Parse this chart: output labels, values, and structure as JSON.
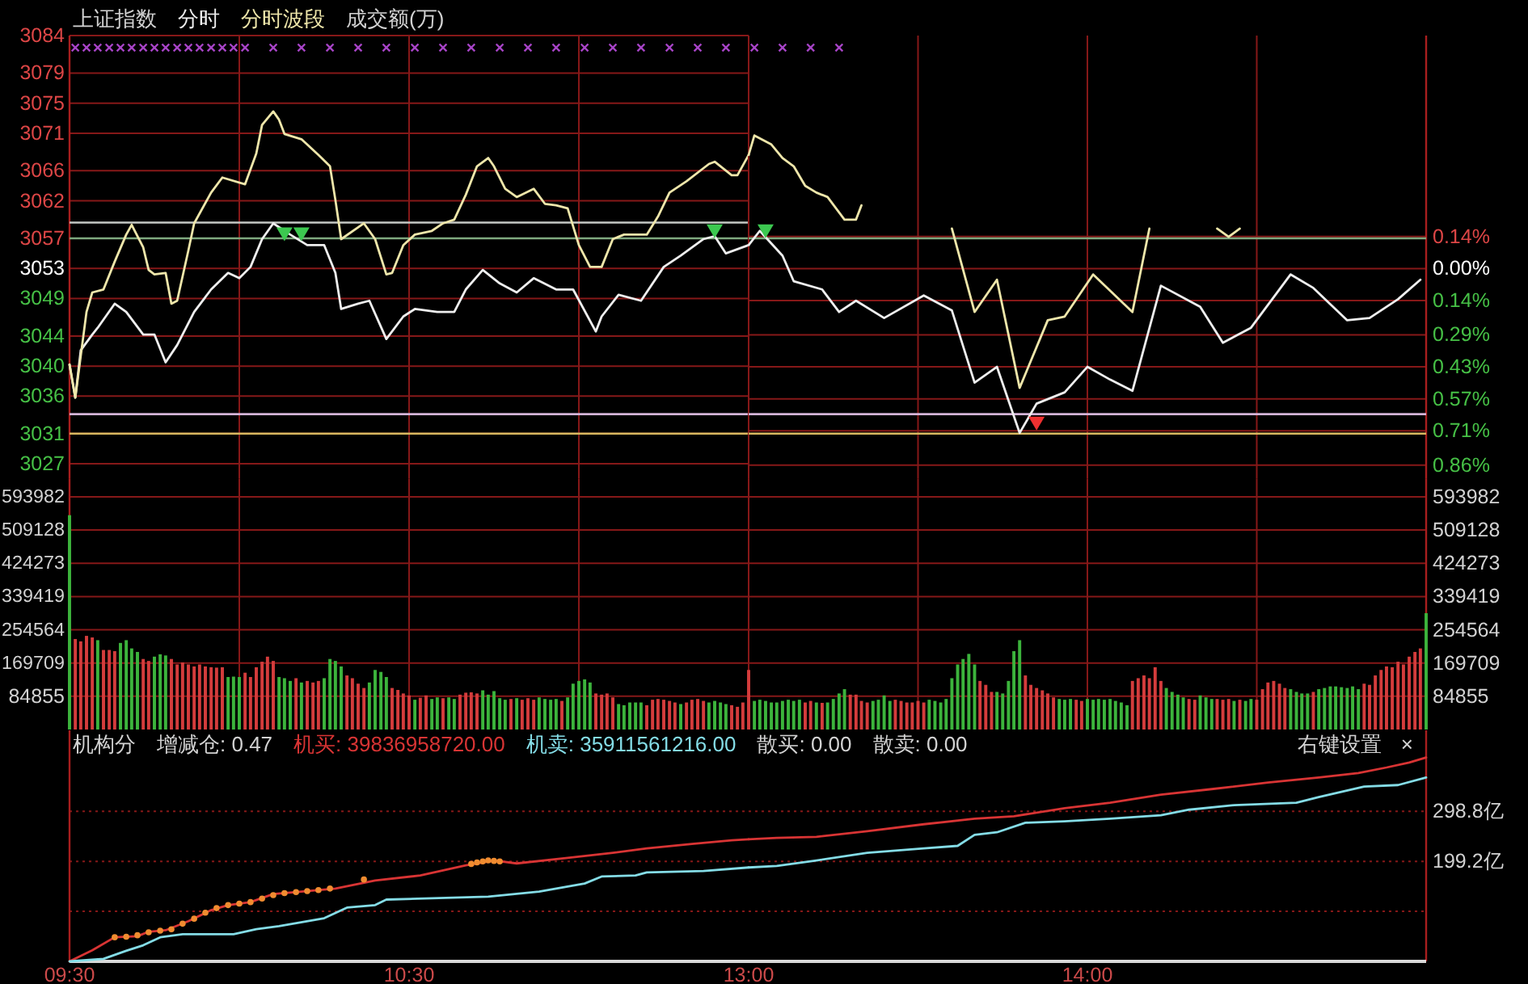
{
  "chart_data": [
    {
      "type": "line",
      "title": "上证指数",
      "series": [
        {
          "name": "分时",
          "color": "#eeeeee",
          "x": [
            9.5,
            9.517,
            9.533,
            9.567,
            9.583,
            9.633,
            9.667,
            9.717,
            9.75,
            9.783,
            9.817,
            9.867,
            9.917,
            9.967,
            10,
            10.033,
            10.067,
            10.1,
            10.15,
            10.2,
            10.25,
            10.283,
            10.3,
            10.35,
            10.383,
            10.433,
            10.483,
            10.517,
            10.583,
            10.633,
            10.667,
            10.717,
            10.767,
            10.817,
            10.867,
            10.933,
            10.983,
            11.05,
            11.067,
            11.117,
            11.183,
            11.25,
            11.3,
            11.367,
            11.4,
            11.433,
            11.5
          ],
          "values": [
            3040.2,
            3035.8,
            3042.1,
            3044.2,
            3045.1,
            3048.3,
            3047.2,
            3044.2,
            3044.2,
            3040.5,
            3042.8,
            3047.2,
            3050.2,
            3052.4,
            3051.7,
            3053.2,
            3056.9,
            3059.0,
            3057.5,
            3056.1,
            3056.1,
            3052.4,
            3047.6,
            3048.3,
            3048.7,
            3043.6,
            3046.6,
            3047.6,
            3047.2,
            3047.2,
            3050.2,
            3052.8,
            3051.0,
            3049.8,
            3051.7,
            3050.2,
            3050.2,
            3044.6,
            3046.6,
            3049.5,
            3048.7,
            3053.2,
            3054.7,
            3056.9,
            3057.3,
            3055.0,
            3056.1
          ]
        },
        {
          "name": "分时波段",
          "color": "#eee6aa",
          "x": [
            9.5,
            9.517,
            9.55,
            9.567,
            9.6,
            9.633,
            9.667,
            9.683,
            9.717,
            9.733,
            9.75,
            9.783,
            9.8,
            9.817,
            9.85,
            9.867,
            9.917,
            9.95,
            10.017,
            10.05,
            10.067,
            10.1,
            10.117,
            10.133,
            10.183,
            10.233,
            10.267,
            10.283,
            10.3,
            10.367,
            10.4,
            10.433,
            10.45,
            10.483,
            10.517,
            10.567,
            10.6,
            10.633,
            10.667,
            10.7,
            10.733,
            10.75,
            10.783,
            10.817,
            10.867,
            10.9,
            10.933,
            10.967,
            11,
            11.033,
            11.067,
            11.1,
            11.133,
            11.2,
            11.233,
            11.267,
            11.317,
            11.383,
            11.4,
            11.45,
            11.467,
            11.5
          ],
          "values": [
            3040.2,
            3035.8,
            3047.2,
            3049.8,
            3050.2,
            3053.9,
            3057.5,
            3058.8,
            3055.8,
            3052.8,
            3052.2,
            3052.4,
            3048.3,
            3048.7,
            3055.4,
            3059.0,
            3063.1,
            3065.1,
            3064.2,
            3068.3,
            3072.1,
            3073.9,
            3072.8,
            3070.9,
            3070.2,
            3068.1,
            3066.6,
            3062.1,
            3056.9,
            3059.0,
            3056.9,
            3052.2,
            3052.4,
            3056.1,
            3057.5,
            3058.0,
            3059.0,
            3059.5,
            3062.8,
            3066.6,
            3067.7,
            3066.6,
            3063.6,
            3062.5,
            3063.6,
            3061.6,
            3061.4,
            3061.0,
            3056.1,
            3053.2,
            3053.2,
            3056.9,
            3057.5,
            3057.5,
            3059.9,
            3063.1,
            3064.6,
            3066.9,
            3067.2,
            3065.4,
            3065.4,
            3068.1
          ]
        },
        {
          "type": "scatter",
          "marker": "cross",
          "color": "#a844c8",
          "x": [
            9.517,
            9.55,
            9.583,
            9.617,
            9.65,
            9.683,
            9.717,
            9.75,
            9.783,
            9.817,
            9.85,
            9.883,
            9.917,
            9.95,
            9.983,
            10.017,
            10.1,
            10.183,
            10.267,
            10.35,
            10.433,
            10.517,
            10.6,
            10.683,
            10.767,
            10.85,
            10.933,
            11.017,
            11.1,
            11.183,
            11.267,
            11.35,
            11.433
          ],
          "values": [
            3082.4,
            3082.4,
            3082.4,
            3082.4,
            3082.4,
            3082.4,
            3082.4,
            3082.4,
            3082.4,
            3082.4,
            3082.4,
            3082.4,
            3082.4,
            3082.4,
            3082.4,
            3082.4,
            3082.4,
            3082.4,
            3082.4,
            3082.4,
            3082.4,
            3082.4,
            3082.4,
            3082.4,
            3082.4,
            3082.4,
            3082.4,
            3082.4,
            3082.4,
            3082.4,
            3082.4,
            3082.4,
            3082.4
          ]
        },
        {
          "type": "scatter",
          "marker": "triangle",
          "color": "#3cc850",
          "x": [
            10.133,
            10.183,
            11.4
          ],
          "values": [
            3057.6,
            3057.6,
            3058.0
          ]
        }
      ],
      "annotations": [
        "成交额(万)"
      ],
      "xlim": [
        9.5,
        11.5
      ],
      "xticks": [
        9.5,
        10,
        10.5,
        11,
        11.5
      ],
      "ylim": [
        3025,
        3084
      ],
      "yticks": [
        3027,
        3031,
        3036,
        3040,
        3044,
        3049,
        3053,
        3057,
        3062,
        3066,
        3071,
        3075,
        3079,
        3084
      ],
      "ref_lines": [
        {
          "axis": "y",
          "value": 3059.1,
          "color": "#c4c8c4"
        },
        {
          "axis": "y",
          "value": 3057.0,
          "color": "#7ea87e"
        },
        {
          "axis": "y",
          "value": 3033.6,
          "color": "#d4b4d8"
        },
        {
          "axis": "y",
          "value": 3031.0,
          "color": "#d8b860"
        }
      ],
      "grid": true,
      "tick_labels": "y"
    },
    {
      "type": "line",
      "series": [
        {
          "color": "#eeeeee",
          "x": [
            13,
            13.033,
            13.1,
            13.133,
            13.217,
            13.267,
            13.317,
            13.4,
            13.517,
            13.6,
            13.667,
            13.733,
            13.8,
            13.85,
            13.933,
            14,
            14.067,
            14.133,
            14.217,
            14.333,
            14.4,
            14.483,
            14.6,
            14.667,
            14.767,
            14.833,
            14.917,
            14.983
          ],
          "values": [
            3056.1,
            3058.0,
            3054.7,
            3051.3,
            3050.2,
            3047.2,
            3048.7,
            3046.4,
            3049.4,
            3047.4,
            3037.8,
            3039.9,
            3031.1,
            3035.0,
            3036.5,
            3039.9,
            3038.2,
            3036.7,
            3050.7,
            3047.9,
            3043.1,
            3045.1,
            3052.2,
            3050.4,
            3046.1,
            3046.4,
            3048.9,
            3051.5
          ]
        },
        {
          "color": "#eee6aa",
          "x": [
            13,
            13.017,
            13.067,
            13.1,
            13.133,
            13.167,
            13.2,
            13.233,
            13.283,
            13.317,
            13.333
          ],
          "values": [
            3068.1,
            3070.7,
            3069.5,
            3067.7,
            3066.6,
            3064.0,
            3063.1,
            3062.5,
            3059.5,
            3059.5,
            3061.4
          ]
        },
        {
          "color": "#eee6aa",
          "x": [
            13.6,
            13.667,
            13.733,
            13.8,
            13.883,
            13.933,
            14.017,
            14.133,
            14.183
          ],
          "values": [
            3058.3,
            3047.2,
            3051.5,
            3037.1,
            3046.1,
            3046.6,
            3052.2,
            3047.2,
            3058.3
          ]
        },
        {
          "color": "#eee6aa",
          "x": [
            14.383,
            14.417,
            14.45
          ],
          "values": [
            3058.3,
            3057.2,
            3058.3
          ]
        },
        {
          "type": "scatter",
          "marker": "cross",
          "color": "#a844c8",
          "x": [
            13.017,
            13.1,
            13.183,
            13.267
          ],
          "values": [
            3082.4,
            3082.4,
            3082.4,
            3082.4
          ]
        },
        {
          "type": "scatter",
          "marker": "triangle",
          "color": "#3cc850",
          "x": [
            13.05
          ],
          "values": [
            3058.0
          ]
        },
        {
          "type": "scatter",
          "marker": "triangle",
          "color": "#ee3030",
          "x": [
            13.85
          ],
          "values": [
            3032.4
          ]
        }
      ],
      "xlim": [
        13,
        15
      ],
      "xticks": [
        13,
        13.5,
        14,
        14.5,
        15
      ],
      "ylim": [
        3025,
        3084
      ],
      "y2lim": [
        -0.92,
        1.02
      ],
      "y2ticks": [
        {
          "value": 0.14,
          "label": "0.14%"
        },
        {
          "value": 0,
          "label": "0.00%"
        },
        {
          "value": -0.14,
          "label": "0.14%"
        },
        {
          "value": -0.29,
          "label": "0.29%"
        },
        {
          "value": -0.43,
          "label": "0.43%"
        },
        {
          "value": -0.57,
          "label": "0.57%"
        },
        {
          "value": -0.71,
          "label": "0.71%"
        },
        {
          "value": -0.86,
          "label": "0.86%"
        }
      ],
      "ref_lines": [
        {
          "axis": "y",
          "value": 3057.0,
          "color": "#7ea87e"
        },
        {
          "axis": "y",
          "value": 3033.6,
          "color": "#d4b4d8"
        },
        {
          "axis": "y",
          "value": 3031.0,
          "color": "#d8b860"
        }
      ],
      "grid": true,
      "tick_labels": "y"
    },
    {
      "type": "bar",
      "x": [
        9.5,
        9.517,
        9.533,
        9.55,
        9.567,
        9.583,
        9.6,
        9.617,
        9.633,
        9.65,
        9.667,
        9.683,
        9.7,
        9.717,
        9.733,
        9.75,
        9.767,
        9.783,
        9.8,
        9.817,
        9.833,
        9.85,
        9.867,
        9.883,
        9.9,
        9.917,
        9.933,
        9.95,
        9.967,
        9.983,
        10,
        10.017,
        10.033,
        10.05,
        10.067,
        10.083,
        10.1,
        10.117,
        10.133,
        10.15,
        10.167,
        10.183,
        10.2,
        10.217,
        10.233,
        10.25,
        10.267,
        10.283,
        10.3,
        10.317,
        10.333,
        10.35,
        10.367,
        10.383,
        10.4,
        10.417,
        10.433,
        10.45,
        10.467,
        10.483,
        10.5,
        10.517,
        10.533,
        10.55,
        10.567,
        10.583,
        10.6,
        10.617,
        10.633,
        10.65,
        10.667,
        10.683,
        10.7,
        10.717,
        10.733,
        10.75,
        10.767,
        10.783,
        10.8,
        10.817,
        10.833,
        10.85,
        10.867,
        10.883,
        10.9,
        10.917,
        10.933,
        10.95,
        10.967,
        10.983,
        11,
        11.017,
        11.033,
        11.05,
        11.067,
        11.083,
        11.1,
        11.117,
        11.133,
        11.15,
        11.167,
        11.183,
        11.2,
        11.217,
        11.233,
        11.25,
        11.267,
        11.283,
        11.3,
        11.317,
        11.333,
        11.35,
        11.367,
        11.383,
        11.4,
        11.417,
        11.433,
        11.45,
        11.467,
        11.483
      ],
      "values": [
        547000,
        231000,
        225000,
        239000,
        235000,
        228000,
        203000,
        203000,
        200000,
        221000,
        228000,
        207000,
        198000,
        180000,
        175000,
        186000,
        192000,
        189000,
        180000,
        166000,
        171000,
        166000,
        161000,
        166000,
        161000,
        159000,
        158000,
        159000,
        134000,
        135000,
        134000,
        145000,
        134000,
        159000,
        173000,
        186000,
        175000,
        134000,
        131000,
        124000,
        131000,
        120000,
        124000,
        120000,
        124000,
        131000,
        180000,
        175000,
        161000,
        138000,
        131000,
        117000,
        106000,
        120000,
        152000,
        147000,
        134000,
        106000,
        101000,
        92000,
        87000,
        76000,
        81000,
        87000,
        78000,
        82000,
        80000,
        82000,
        78000,
        89000,
        94000,
        95000,
        92000,
        100000,
        89000,
        98000,
        80000,
        76000,
        78000,
        80000,
        76000,
        80000,
        76000,
        82000,
        78000,
        76000,
        78000,
        73000,
        82000,
        117000,
        124000,
        128000,
        120000,
        92000,
        89000,
        92000,
        82000,
        65000,
        62000,
        69000,
        69000,
        69000,
        62000,
        76000,
        78000,
        76000,
        73000,
        69000,
        65000,
        69000,
        76000,
        78000,
        73000,
        69000,
        73000,
        69000,
        65000,
        62000,
        58000,
        69000
      ],
      "colors": [
        "#3cb43c",
        "#d43c3c",
        "#d43c3c",
        "#d43c3c",
        "#d43c3c",
        "#3cb43c",
        "#d43c3c",
        "#d43c3c",
        "#d43c3c",
        "#3cb43c",
        "#3cb43c",
        "#3cb43c",
        "#3cb43c",
        "#d43c3c",
        "#d43c3c",
        "#3cb43c",
        "#3cb43c",
        "#3cb43c",
        "#d43c3c",
        "#d43c3c",
        "#d43c3c",
        "#d43c3c",
        "#d43c3c",
        "#d43c3c",
        "#d43c3c",
        "#d43c3c",
        "#d43c3c",
        "#d43c3c",
        "#3cb43c",
        "#3cb43c",
        "#3cb43c",
        "#d43c3c",
        "#d43c3c",
        "#d43c3c",
        "#d43c3c",
        "#d43c3c",
        "#d43c3c",
        "#3cb43c",
        "#3cb43c",
        "#3cb43c",
        "#d43c3c",
        "#3cb43c",
        "#d43c3c",
        "#d43c3c",
        "#d43c3c",
        "#3cb43c",
        "#3cb43c",
        "#3cb43c",
        "#3cb43c",
        "#d43c3c",
        "#d43c3c",
        "#d43c3c",
        "#d43c3c",
        "#3cb43c",
        "#3cb43c",
        "#3cb43c",
        "#3cb43c",
        "#d43c3c",
        "#d43c3c",
        "#d43c3c",
        "#d43c3c",
        "#3cb43c",
        "#d43c3c",
        "#d43c3c",
        "#3cb43c",
        "#3cb43c",
        "#d43c3c",
        "#3cb43c",
        "#3cb43c",
        "#d43c3c",
        "#d43c3c",
        "#d43c3c",
        "#d43c3c",
        "#3cb43c",
        "#3cb43c",
        "#3cb43c",
        "#3cb43c",
        "#3cb43c",
        "#d43c3c",
        "#3cb43c",
        "#d43c3c",
        "#d43c3c",
        "#d43c3c",
        "#3cb43c",
        "#3cb43c",
        "#3cb43c",
        "#3cb43c",
        "#d43c3c",
        "#3cb43c",
        "#3cb43c",
        "#3cb43c",
        "#3cb43c",
        "#3cb43c",
        "#d43c3c",
        "#d43c3c",
        "#d43c3c",
        "#d43c3c",
        "#3cb43c",
        "#3cb43c",
        "#3cb43c",
        "#3cb43c",
        "#3cb43c",
        "#d43c3c",
        "#d43c3c",
        "#d43c3c",
        "#d43c3c",
        "#d43c3c",
        "#d43c3c",
        "#3cb43c",
        "#d43c3c",
        "#d43c3c",
        "#d43c3c",
        "#d43c3c",
        "#3cb43c",
        "#3cb43c",
        "#3cb43c",
        "#3cb43c",
        "#d43c3c",
        "#d43c3c",
        "#d43c3c"
      ],
      "xlim": [
        9.5,
        11.5
      ],
      "xticks": [
        9.5,
        10,
        10.5,
        11,
        11.5
      ],
      "ylim": [
        0,
        640000
      ],
      "yticks": [
        84855,
        169709,
        254564,
        339419,
        424273,
        509128,
        593982
      ],
      "grid": true,
      "tick_labels": "y"
    },
    {
      "type": "bar",
      "x": [
        13,
        13.017,
        13.033,
        13.05,
        13.067,
        13.083,
        13.1,
        13.117,
        13.133,
        13.15,
        13.167,
        13.183,
        13.2,
        13.217,
        13.233,
        13.25,
        13.267,
        13.283,
        13.3,
        13.317,
        13.333,
        13.35,
        13.367,
        13.383,
        13.4,
        13.417,
        13.433,
        13.45,
        13.467,
        13.483,
        13.5,
        13.517,
        13.533,
        13.55,
        13.567,
        13.583,
        13.6,
        13.617,
        13.633,
        13.65,
        13.667,
        13.683,
        13.7,
        13.717,
        13.733,
        13.75,
        13.767,
        13.783,
        13.8,
        13.817,
        13.833,
        13.85,
        13.867,
        13.883,
        13.9,
        13.917,
        13.933,
        13.95,
        13.967,
        13.983,
        14,
        14.017,
        14.033,
        14.05,
        14.067,
        14.083,
        14.1,
        14.117,
        14.133,
        14.15,
        14.167,
        14.183,
        14.2,
        14.217,
        14.233,
        14.25,
        14.267,
        14.283,
        14.3,
        14.317,
        14.333,
        14.35,
        14.367,
        14.383,
        14.4,
        14.417,
        14.433,
        14.45,
        14.467,
        14.483,
        14.5,
        14.517,
        14.533,
        14.55,
        14.567,
        14.583,
        14.6,
        14.617,
        14.633,
        14.65,
        14.667,
        14.683,
        14.7,
        14.717,
        14.733,
        14.75,
        14.767,
        14.783,
        14.8,
        14.817,
        14.833,
        14.85,
        14.867,
        14.883,
        14.9,
        14.917,
        14.933,
        14.95,
        14.967,
        14.983,
        15
      ],
      "values": [
        152000,
        73000,
        76000,
        73000,
        69000,
        69000,
        73000,
        76000,
        73000,
        76000,
        69000,
        73000,
        69000,
        68000,
        69000,
        78000,
        92000,
        103000,
        89000,
        89000,
        73000,
        69000,
        73000,
        76000,
        87000,
        73000,
        76000,
        73000,
        69000,
        69000,
        73000,
        69000,
        76000,
        73000,
        69000,
        78000,
        131000,
        166000,
        180000,
        193000,
        166000,
        124000,
        114000,
        96000,
        96000,
        92000,
        124000,
        200000,
        228000,
        138000,
        114000,
        106000,
        100000,
        92000,
        82000,
        78000,
        76000,
        78000,
        76000,
        73000,
        78000,
        76000,
        78000,
        76000,
        78000,
        73000,
        69000,
        62000,
        124000,
        131000,
        138000,
        131000,
        159000,
        124000,
        106000,
        96000,
        89000,
        82000,
        78000,
        76000,
        87000,
        82000,
        78000,
        78000,
        76000,
        78000,
        73000,
        76000,
        73000,
        78000,
        76000,
        103000,
        120000,
        124000,
        117000,
        106000,
        103000,
        96000,
        92000,
        92000,
        96000,
        103000,
        106000,
        110000,
        110000,
        108000,
        106000,
        110000,
        103000,
        117000,
        114000,
        138000,
        152000,
        161000,
        159000,
        173000,
        166000,
        186000,
        198000,
        207000,
        297000
      ],
      "colors": [
        "#d43c3c",
        "#3cb43c",
        "#3cb43c",
        "#3cb43c",
        "#3cb43c",
        "#3cb43c",
        "#3cb43c",
        "#3cb43c",
        "#3cb43c",
        "#3cb43c",
        "#d43c3c",
        "#d43c3c",
        "#3cb43c",
        "#d43c3c",
        "#3cb43c",
        "#3cb43c",
        "#3cb43c",
        "#3cb43c",
        "#d43c3c",
        "#d43c3c",
        "#d43c3c",
        "#d43c3c",
        "#3cb43c",
        "#3cb43c",
        "#3cb43c",
        "#3cb43c",
        "#d43c3c",
        "#d43c3c",
        "#d43c3c",
        "#d43c3c",
        "#d43c3c",
        "#d43c3c",
        "#3cb43c",
        "#3cb43c",
        "#3cb43c",
        "#3cb43c",
        "#3cb43c",
        "#3cb43c",
        "#3cb43c",
        "#3cb43c",
        "#3cb43c",
        "#d43c3c",
        "#d43c3c",
        "#d43c3c",
        "#3cb43c",
        "#3cb43c",
        "#3cb43c",
        "#3cb43c",
        "#3cb43c",
        "#d43c3c",
        "#d43c3c",
        "#d43c3c",
        "#d43c3c",
        "#d43c3c",
        "#d43c3c",
        "#3cb43c",
        "#3cb43c",
        "#3cb43c",
        "#d43c3c",
        "#d43c3c",
        "#3cb43c",
        "#3cb43c",
        "#3cb43c",
        "#3cb43c",
        "#3cb43c",
        "#3cb43c",
        "#3cb43c",
        "#3cb43c",
        "#d43c3c",
        "#d43c3c",
        "#d43c3c",
        "#d43c3c",
        "#d43c3c",
        "#d43c3c",
        "#3cb43c",
        "#3cb43c",
        "#3cb43c",
        "#3cb43c",
        "#d43c3c",
        "#d43c3c",
        "#3cb43c",
        "#3cb43c",
        "#3cb43c",
        "#d43c3c",
        "#d43c3c",
        "#d43c3c",
        "#3cb43c",
        "#d43c3c",
        "#3cb43c",
        "#3cb43c",
        "#d43c3c",
        "#d43c3c",
        "#d43c3c",
        "#d43c3c",
        "#d43c3c",
        "#d43c3c",
        "#3cb43c",
        "#3cb43c",
        "#3cb43c",
        "#3cb43c",
        "#d43c3c",
        "#3cb43c",
        "#3cb43c",
        "#3cb43c",
        "#3cb43c",
        "#3cb43c",
        "#3cb43c",
        "#3cb43c",
        "#3cb43c",
        "#d43c3c",
        "#d43c3c",
        "#d43c3c",
        "#d43c3c",
        "#d43c3c",
        "#d43c3c",
        "#d43c3c",
        "#d43c3c",
        "#d43c3c",
        "#d43c3c",
        "#d43c3c",
        "#3cb43c"
      ],
      "xlim": [
        13,
        15
      ],
      "xticks": [
        13,
        13.5,
        14,
        14.5,
        15
      ],
      "ylim": [
        0,
        640000
      ],
      "yticks": [
        84855,
        169709,
        254564,
        339419,
        424273,
        509128,
        593982
      ],
      "grid": true,
      "tick_labels": "y"
    },
    {
      "type": "line",
      "title": "机构分",
      "subtitle": "增减仓: 0.47",
      "series": [
        {
          "name": "机买: 39836958720.00",
          "color": "#d83434",
          "x": [
            9.5,
            9.567,
            9.633,
            9.7,
            9.733,
            9.783,
            9.85,
            9.917,
            9.967,
            10.033,
            10.1,
            10.183,
            10.283,
            10.4,
            10.533,
            10.667,
            10.75,
            10.817,
            10.967,
            11.1,
            11.2,
            11.333,
            11.45,
            11.5
          ],
          "values": [
            0,
            22,
            48,
            50,
            59,
            62,
            80,
            102,
            112,
            118,
            134,
            139,
            145,
            161,
            171,
            191,
            201,
            195,
            206,
            216,
            225,
            234,
            241,
            243
          ]
        },
        {
          "name": "机卖: 35911561216.00",
          "color": "#84dce6",
          "x": [
            9.5,
            9.6,
            9.667,
            9.717,
            9.767,
            9.833,
            9.983,
            10.05,
            10.117,
            10.25,
            10.317,
            10.4,
            10.433,
            10.733,
            10.883,
            11.017,
            11.067,
            11.167,
            11.2,
            11.367,
            11.5
          ],
          "values": [
            0,
            5,
            21,
            32,
            48,
            54,
            54,
            64,
            70,
            86,
            107,
            112,
            123,
            129,
            139,
            155,
            169,
            171,
            177,
            180,
            187
          ]
        },
        {
          "type": "scatter",
          "marker": "circle",
          "color": "#f08c30",
          "x": [
            9.633,
            9.667,
            9.7,
            9.733,
            9.767,
            9.8,
            9.833,
            9.867,
            9.9,
            9.933,
            9.967,
            10,
            10.033,
            10.067,
            10.1,
            10.133,
            10.167,
            10.2,
            10.233,
            10.267,
            10.367,
            10.683,
            10.7,
            10.717,
            10.733,
            10.75,
            10.767
          ],
          "values": [
            48,
            49,
            52,
            58,
            61,
            64,
            75,
            85,
            97,
            106,
            112,
            115,
            118,
            125,
            132,
            136,
            138,
            140,
            142,
            145,
            163,
            194,
            197,
            199,
            201,
            200,
            199
          ]
        }
      ],
      "annotations": [
        "散买: 0.00",
        "散卖: 0.00"
      ],
      "xlim": [
        9.5,
        11.5
      ],
      "xticks": [
        {
          "value": 9.5,
          "label": "09:30"
        },
        {
          "value": 10.5,
          "label": "10:30"
        }
      ],
      "ylim": [
        0,
        460
      ],
      "yticks": [
        99.6,
        199.2,
        298.8
      ],
      "grid": "y",
      "tick_labels": "x"
    },
    {
      "type": "line",
      "series": [
        {
          "color": "#d83434",
          "x": [
            13,
            13.083,
            13.2,
            13.35,
            13.517,
            13.667,
            13.783,
            13.933,
            14.067,
            14.217,
            14.367,
            14.533,
            14.683,
            14.8,
            14.883,
            14.95,
            15
          ],
          "values": [
            243,
            246,
            248,
            259,
            273,
            284,
            289,
            305,
            316,
            332,
            343,
            356,
            366,
            375,
            386,
            396,
            406
          ]
        },
        {
          "color": "#84dce6",
          "x": [
            13,
            13.083,
            13.2,
            13.35,
            13.517,
            13.617,
            13.667,
            13.733,
            13.817,
            13.933,
            14.067,
            14.217,
            14.3,
            14.433,
            14.617,
            14.683,
            14.817,
            14.917,
            15
          ],
          "values": [
            187,
            190,
            201,
            216,
            225,
            230,
            252,
            257,
            276,
            279,
            284,
            291,
            302,
            311,
            316,
            327,
            348,
            351,
            366
          ]
        }
      ],
      "annotations": [
        "右键设置",
        "×"
      ],
      "xlim": [
        13,
        15
      ],
      "xticks": [
        {
          "value": 13,
          "label": "13:00"
        },
        {
          "value": 14,
          "label": "14:00"
        }
      ],
      "ylim": [
        0,
        460
      ],
      "yticks": [
        {
          "value": 99.6,
          "label": null
        },
        {
          "value": 199.2,
          "label": "199.2亿"
        },
        {
          "value": 298.8,
          "label": "298.8亿"
        }
      ],
      "grid": "y"
    }
  ]
}
